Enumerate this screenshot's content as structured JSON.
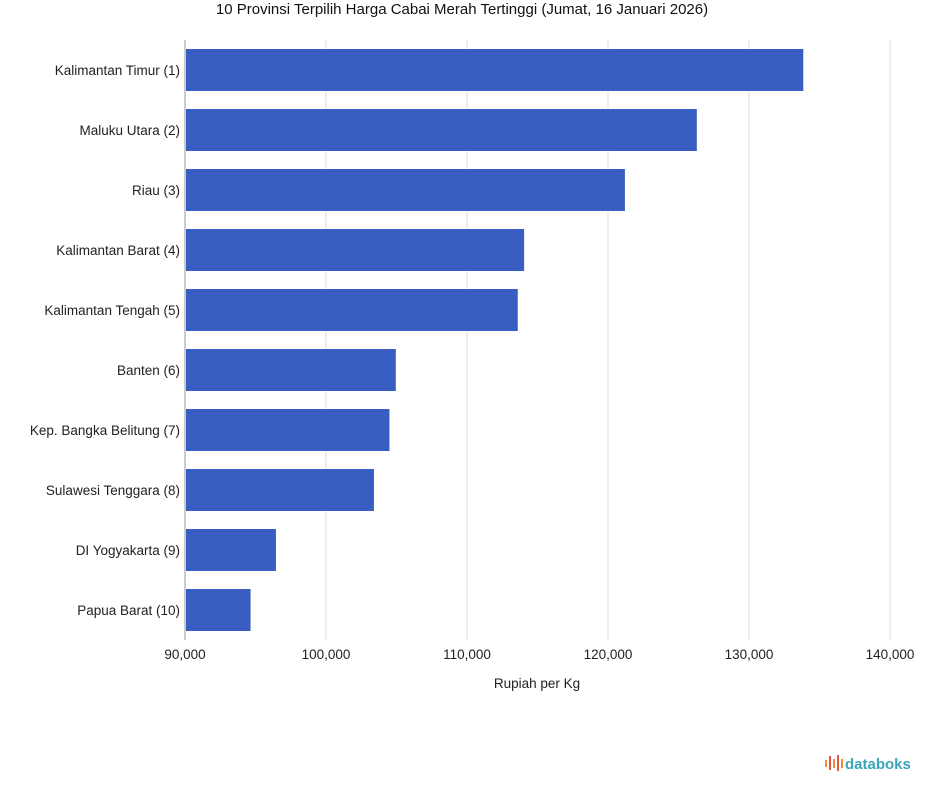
{
  "chart_data": {
    "type": "bar",
    "orientation": "horizontal",
    "title": "10 Provinsi Terpilih Harga Cabai Merah Tertinggi (Jumat, 16 Januari 2026)",
    "xlabel": "Rupiah per Kg",
    "ylabel": "",
    "categories": [
      "Kalimantan Timur (1)",
      "Maluku Utara (2)",
      "Riau (3)",
      "Kalimantan Barat (4)",
      "Kalimantan Tengah (5)",
      "Banten (6)",
      "Kep. Bangka Belitung (7)",
      "Sulawesi Tenggara (8)",
      "DI Yogyakarta (9)",
      "Papua Barat (10)"
    ],
    "values": [
      133850,
      126300,
      121200,
      114050,
      113600,
      104950,
      104500,
      103400,
      96450,
      94650
    ],
    "xlim": [
      90000,
      140000
    ],
    "ticks": [
      "90,000",
      "100,000",
      "110,000",
      "120,000",
      "130,000",
      "140,000"
    ],
    "tick_values": [
      90000,
      100000,
      110000,
      120000,
      130000,
      140000
    ],
    "bar_color": "#3a5dc1",
    "grid": true,
    "legend": "none"
  },
  "brand": {
    "name": "databoks",
    "color": "#3aa6b9",
    "icon": "databoks-logo-icon"
  }
}
